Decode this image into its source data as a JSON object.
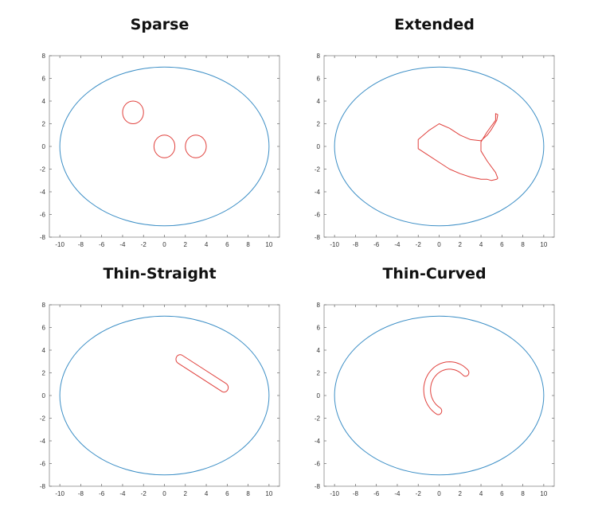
{
  "chart_data": [
    {
      "type": "line",
      "title": "Sparse",
      "xlim": [
        -11,
        11
      ],
      "ylim": [
        -8,
        8
      ],
      "xticks": [
        -10,
        -8,
        -6,
        -4,
        -2,
        0,
        2,
        4,
        6,
        8,
        10
      ],
      "yticks": [
        -8,
        -6,
        -4,
        -2,
        0,
        2,
        4,
        6,
        8
      ],
      "grid": false,
      "series": [
        {
          "kind": "ellipse",
          "color": "#3d8fc6",
          "cx": 0,
          "cy": 0,
          "rx": 10,
          "ry": 7
        },
        {
          "kind": "ellipse",
          "color": "#e0403c",
          "cx": -3,
          "cy": 3,
          "rx": 1,
          "ry": 1
        },
        {
          "kind": "ellipse",
          "color": "#e0403c",
          "cx": 0,
          "cy": 0,
          "rx": 1,
          "ry": 1
        },
        {
          "kind": "ellipse",
          "color": "#e0403c",
          "cx": 3,
          "cy": 0,
          "rx": 1,
          "ry": 1
        }
      ]
    },
    {
      "type": "line",
      "title": "Extended",
      "xlim": [
        -11,
        11
      ],
      "ylim": [
        -8,
        8
      ],
      "xticks": [
        -10,
        -8,
        -6,
        -4,
        -2,
        0,
        2,
        4,
        6,
        8,
        10
      ],
      "yticks": [
        -8,
        -6,
        -4,
        -2,
        0,
        2,
        4,
        6,
        8
      ],
      "grid": false,
      "series": [
        {
          "kind": "ellipse",
          "color": "#3d8fc6",
          "cx": 0,
          "cy": 0,
          "rx": 10,
          "ry": 7
        },
        {
          "kind": "polyline",
          "color": "#e0403c",
          "closed": true,
          "x": [
            5.4,
            5.6,
            5.5,
            5.0,
            4.6,
            4.0,
            3.0,
            2.0,
            1.0,
            0.0,
            -1.0,
            -2.0,
            -2.0,
            -1.0,
            0.0,
            1.0,
            2.0,
            3.0,
            4.0,
            4.6,
            5.0,
            5.5,
            5.6,
            5.4,
            4.6,
            4.0,
            4.0,
            4.6,
            5.4
          ],
          "y": [
            2.9,
            2.8,
            2.3,
            1.5,
            1.0,
            0.5,
            0.6,
            1.0,
            1.6,
            2.0,
            1.4,
            0.6,
            -0.2,
            -0.8,
            -1.4,
            -2.0,
            -2.4,
            -2.7,
            -2.9,
            -2.9,
            -3.0,
            -2.9,
            -2.8,
            -2.3,
            -1.3,
            -0.4,
            0.4,
            1.3,
            2.3
          ]
        }
      ]
    },
    {
      "type": "line",
      "title": "Thin-Straight",
      "xlim": [
        -11,
        11
      ],
      "ylim": [
        -8,
        8
      ],
      "xticks": [
        -10,
        -8,
        -6,
        -4,
        -2,
        0,
        2,
        4,
        6,
        8,
        10
      ],
      "yticks": [
        -8,
        -6,
        -4,
        -2,
        0,
        2,
        4,
        6,
        8
      ],
      "grid": false,
      "series": [
        {
          "kind": "ellipse",
          "color": "#3d8fc6",
          "cx": 0,
          "cy": 0,
          "rx": 10,
          "ry": 7
        },
        {
          "kind": "stadium",
          "color": "#e0403c",
          "x1": 1.5,
          "y1": 3.2,
          "x2": 5.7,
          "y2": 0.7,
          "r": 0.4
        }
      ]
    },
    {
      "type": "line",
      "title": "Thin-Curved",
      "xlim": [
        -11,
        11
      ],
      "ylim": [
        -8,
        8
      ],
      "xticks": [
        -10,
        -8,
        -6,
        -4,
        -2,
        0,
        2,
        4,
        6,
        8,
        10
      ],
      "yticks": [
        -8,
        -6,
        -4,
        -2,
        0,
        2,
        4,
        6,
        8
      ],
      "grid": false,
      "series": [
        {
          "kind": "arc",
          "color": "#e0403c",
          "cx": 1,
          "cy": 0.5,
          "r": 2.15,
          "thickness": 0.65,
          "start_deg": 45,
          "end_deg": 240
        },
        {
          "kind": "ellipse",
          "color": "#3d8fc6",
          "cx": 0,
          "cy": 0,
          "rx": 10,
          "ry": 7
        }
      ]
    }
  ]
}
